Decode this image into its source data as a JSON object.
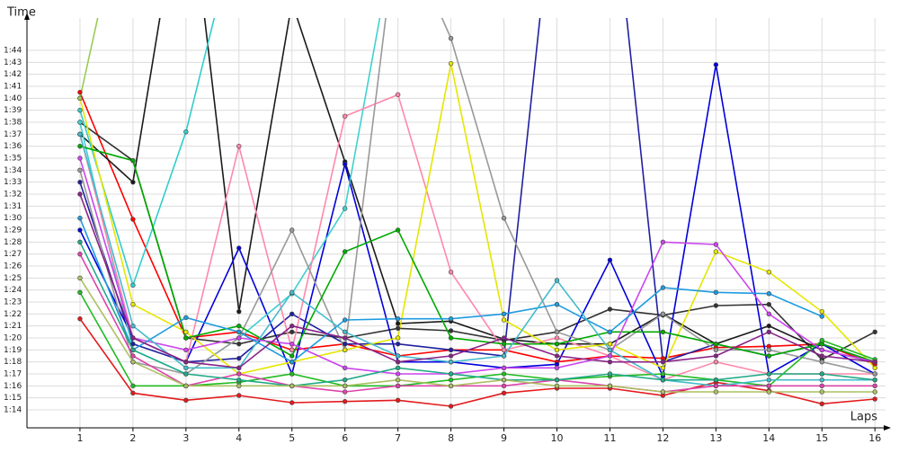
{
  "chart_data": {
    "type": "line",
    "y_label": "Time",
    "x_label": "Laps",
    "x": [
      1,
      2,
      3,
      4,
      5,
      6,
      7,
      8,
      9,
      10,
      11,
      12,
      13,
      14,
      15,
      16
    ],
    "xlim": [
      0,
      16.2
    ],
    "xticks": [
      1,
      2,
      3,
      4,
      5,
      6,
      7,
      8,
      9,
      10,
      11,
      12,
      13,
      14,
      15,
      16
    ],
    "ylim": [
      72.5,
      106.7
    ],
    "yticks": [
      {
        "value": 74,
        "label": "1:14"
      },
      {
        "value": 75,
        "label": "1:15"
      },
      {
        "value": 76,
        "label": "1:16"
      },
      {
        "value": 77,
        "label": "1:17"
      },
      {
        "value": 78,
        "label": "1:18"
      },
      {
        "value": 79,
        "label": "1:19"
      },
      {
        "value": 80,
        "label": "1:20"
      },
      {
        "value": 81,
        "label": "1:21"
      },
      {
        "value": 82,
        "label": "1:22"
      },
      {
        "value": 83,
        "label": "1:23"
      },
      {
        "value": 84,
        "label": "1:24"
      },
      {
        "value": 85,
        "label": "1:25"
      },
      {
        "value": 86,
        "label": "1:26"
      },
      {
        "value": 87,
        "label": "1:27"
      },
      {
        "value": 88,
        "label": "1:28"
      },
      {
        "value": 89,
        "label": "1:29"
      },
      {
        "value": 90,
        "label": "1:30"
      },
      {
        "value": 91,
        "label": "1:31"
      },
      {
        "value": 92,
        "label": "1:32"
      },
      {
        "value": 93,
        "label": "1:33"
      },
      {
        "value": 94,
        "label": "1:34"
      },
      {
        "value": 95,
        "label": "1:35"
      },
      {
        "value": 96,
        "label": "1:36"
      },
      {
        "value": 97,
        "label": "1:37"
      },
      {
        "value": 98,
        "label": "1:38"
      },
      {
        "value": 99,
        "label": "1:39"
      },
      {
        "value": 100,
        "label": "1:40"
      },
      {
        "value": 101,
        "label": "1:41"
      },
      {
        "value": 102,
        "label": "1:42"
      },
      {
        "value": 103,
        "label": "1:43"
      },
      {
        "value": 104,
        "label": "1:44"
      }
    ],
    "grid": true,
    "series": [
      {
        "color": "#e31a1c",
        "values": [
          81.6,
          75.4,
          74.8,
          75.2,
          74.6,
          74.7,
          74.8,
          74.3,
          75.4,
          75.8,
          75.8,
          75.2,
          76.3,
          75.6,
          74.5,
          74.9
        ]
      },
      {
        "color": "#ff0000",
        "values": [
          100.5,
          89.9,
          80,
          80.5,
          79,
          79.5,
          78.5,
          79,
          79,
          78,
          78.5,
          78.3,
          79.2,
          79.3,
          79.5,
          77.8
        ]
      },
      {
        "color": "#333333",
        "values": [
          98,
          94.8,
          80,
          79.5,
          80.5,
          80,
          80.8,
          80.6,
          79.8,
          80.5,
          82.4,
          81.9,
          82.7,
          82.8,
          78.2,
          80.5
        ]
      },
      {
        "color": "#1a1a1a",
        "values": [
          97,
          93,
          120,
          82.2,
          108,
          94.7,
          81.2,
          81.4,
          79.9,
          79.5,
          79.5,
          82,
          79.5,
          81,
          79,
          78
        ]
      },
      {
        "color": "#0000dd",
        "values": [
          89,
          80,
          78,
          87.5,
          77,
          94.5,
          78,
          78,
          77.5,
          77.8,
          86.5,
          76.8,
          102.8,
          77,
          79.5,
          77
        ]
      },
      {
        "color": "#2020a0",
        "values": [
          93,
          79.5,
          78,
          78.3,
          82,
          79.5,
          79.5,
          79,
          78.5,
          120,
          120,
          78,
          79.5,
          78.5,
          79.5,
          78
        ]
      },
      {
        "color": "#33cccc",
        "values": [
          99,
          84.4,
          97.2,
          115,
          null,
          null,
          null,
          null,
          null,
          null,
          null,
          null,
          null,
          null,
          null,
          null
        ]
      },
      {
        "color": "#40d0d0",
        "values": [
          98,
          79,
          77,
          80,
          83.7,
          90.8,
          115,
          null,
          null,
          null,
          null,
          null,
          null,
          null,
          null,
          null
        ]
      },
      {
        "color": "#ff88aa",
        "values": [
          97,
          80,
          78,
          96,
          79,
          98.5,
          100.3,
          85.5,
          79,
          80,
          78.5,
          76.5,
          78,
          77,
          77,
          77
        ]
      },
      {
        "color": "#999999",
        "values": [
          94,
          78,
          77,
          80,
          89,
          79,
          115,
          105,
          90,
          80.5,
          79,
          82,
          79,
          79,
          78,
          77
        ]
      },
      {
        "color": "#e6e600",
        "values": [
          100,
          82.8,
          80.5,
          77,
          78,
          79,
          80,
          102.9,
          81.5,
          79,
          79.5,
          77.5,
          87.2,
          85.5,
          82.2,
          77.5
        ]
      },
      {
        "color": "#00aa00",
        "values": [
          96,
          94.8,
          80,
          81,
          78.5,
          87.2,
          89,
          80,
          79.5,
          79.5,
          80.5,
          80.5,
          79.5,
          78.5,
          79.5,
          78
        ]
      },
      {
        "color": "#22bb22",
        "values": [
          83.8,
          76,
          76,
          76.3,
          77,
          76,
          76,
          76.5,
          77,
          76.5,
          76.8,
          77,
          76.5,
          76,
          79.8,
          78.2
        ]
      },
      {
        "color": "#cc44ee",
        "values": [
          95,
          80,
          79,
          80,
          79.5,
          77.5,
          77,
          77,
          77.5,
          77.5,
          78.5,
          88,
          87.8,
          82,
          79,
          78
        ]
      },
      {
        "color": "#99cc55",
        "values": [
          100,
          120,
          null,
          null,
          null,
          null,
          null,
          null,
          null,
          null,
          null,
          null,
          null,
          null,
          null,
          null
        ]
      },
      {
        "color": "#1e9be0",
        "values": [
          90,
          79,
          81.7,
          80.5,
          78,
          81.5,
          81.6,
          81.6,
          82,
          82.8,
          80.5,
          84.2,
          83.8,
          83.7,
          81.8,
          null
        ]
      },
      {
        "color": "#44bbcc",
        "values": [
          97,
          81,
          77.5,
          77.5,
          83.8,
          80.5,
          78.5,
          78,
          78.5,
          84.8,
          79,
          76.5,
          76,
          76.5,
          76.5,
          76.5
        ]
      },
      {
        "color": "#882288",
        "values": [
          92,
          80,
          78,
          77.5,
          81,
          80,
          78,
          78.5,
          80,
          78.5,
          78,
          78,
          78.5,
          80.5,
          78.5,
          78
        ]
      },
      {
        "color": "#dd44aa",
        "values": [
          87,
          78.5,
          76,
          77,
          76,
          75.5,
          76,
          76,
          76,
          76.5,
          76,
          75.5,
          76,
          76,
          76,
          76
        ]
      },
      {
        "color": "#22aa88",
        "values": [
          88,
          79,
          77,
          76.5,
          76,
          76.5,
          77.5,
          77,
          76.5,
          76.5,
          77,
          76.5,
          76.5,
          77,
          77,
          76.5
        ]
      },
      {
        "color": "#aac060",
        "values": [
          85,
          78,
          76,
          76,
          76,
          76,
          76.5,
          76,
          76.5,
          76,
          76,
          75.5,
          75.5,
          75.5,
          75.5,
          75.5
        ]
      }
    ]
  }
}
